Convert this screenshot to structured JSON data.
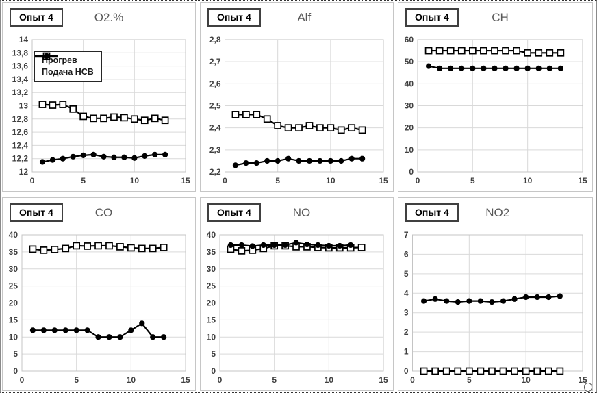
{
  "experiment_label": "Опыт 4",
  "legend": {
    "items": [
      {
        "label": "Прогрев",
        "marker": "open-square"
      },
      {
        "label": "Подача НСВ",
        "marker": "filled-circle"
      }
    ]
  },
  "colors": {
    "series": "#000000",
    "grid": "#d9d9d9",
    "plot_border": "#c4c4c4",
    "tick_text": "#404040",
    "title_text": "#595959",
    "panel_border": "#c6c6c6"
  },
  "chart_data": [
    {
      "type": "line",
      "title": "O2.%",
      "badge": "Опыт 4",
      "x": [
        1,
        2,
        3,
        4,
        5,
        6,
        7,
        8,
        9,
        10,
        11,
        12,
        13
      ],
      "series": [
        {
          "name": "Прогрев",
          "marker": "open-square",
          "values": [
            13.02,
            13.01,
            13.02,
            12.95,
            12.84,
            12.81,
            12.81,
            12.83,
            12.82,
            12.8,
            12.78,
            12.81,
            12.78
          ]
        },
        {
          "name": "Подача НСВ",
          "marker": "filled-circle",
          "values": [
            12.15,
            12.18,
            12.2,
            12.23,
            12.25,
            12.26,
            12.23,
            12.22,
            12.22,
            12.21,
            12.24,
            12.26,
            12.26
          ]
        }
      ],
      "xlim": [
        0,
        15
      ],
      "xticks": [
        0,
        5,
        10,
        15
      ],
      "ylim": [
        12,
        14
      ],
      "ystep": 0.2,
      "decimal_comma": true,
      "grid_on": true,
      "legend_visible": true,
      "legend_position": "upper-left"
    },
    {
      "type": "line",
      "title": "Alf",
      "badge": "Опыт 4",
      "x": [
        1,
        2,
        3,
        4,
        5,
        6,
        7,
        8,
        9,
        10,
        11,
        12,
        13
      ],
      "series": [
        {
          "name": "Прогрев",
          "marker": "open-square",
          "values": [
            2.46,
            2.46,
            2.46,
            2.44,
            2.41,
            2.4,
            2.4,
            2.41,
            2.4,
            2.4,
            2.39,
            2.4,
            2.39
          ]
        },
        {
          "name": "Подача НСВ",
          "marker": "filled-circle",
          "values": [
            2.23,
            2.24,
            2.24,
            2.25,
            2.25,
            2.26,
            2.25,
            2.25,
            2.25,
            2.25,
            2.25,
            2.26,
            2.26
          ]
        }
      ],
      "xlim": [
        0,
        15
      ],
      "xticks": [
        0,
        5,
        10,
        15
      ],
      "ylim": [
        2.2,
        2.8
      ],
      "ystep": 0.1,
      "decimal_comma": true,
      "grid_on": true,
      "legend_visible": false
    },
    {
      "type": "line",
      "title": "CH",
      "badge": "Опыт 4",
      "x": [
        1,
        2,
        3,
        4,
        5,
        6,
        7,
        8,
        9,
        10,
        11,
        12,
        13
      ],
      "series": [
        {
          "name": "Прогрев",
          "marker": "open-square",
          "values": [
            55,
            55,
            55,
            55,
            55,
            55,
            55,
            55,
            55,
            54,
            54,
            54,
            54
          ]
        },
        {
          "name": "Подача НСВ",
          "marker": "filled-circle",
          "values": [
            48,
            47,
            47,
            47,
            47,
            47,
            47,
            47,
            47,
            47,
            47,
            47,
            47
          ]
        }
      ],
      "xlim": [
        0,
        15
      ],
      "xticks": [
        0,
        5,
        10,
        15
      ],
      "ylim": [
        0,
        60
      ],
      "ystep": 10,
      "decimal_comma": true,
      "grid_on": true,
      "legend_visible": false
    },
    {
      "type": "line",
      "title": "CO",
      "badge": "Опыт 4",
      "x": [
        1,
        2,
        3,
        4,
        5,
        6,
        7,
        8,
        9,
        10,
        11,
        12,
        13
      ],
      "series": [
        {
          "name": "Прогрев",
          "marker": "open-square",
          "values": [
            35.8,
            35.5,
            35.7,
            36,
            36.8,
            36.7,
            36.8,
            36.8,
            36.5,
            36.2,
            36,
            36,
            36.3
          ]
        },
        {
          "name": "Подача НСВ",
          "marker": "filled-circle",
          "values": [
            12,
            12,
            12,
            12,
            12,
            12,
            10,
            10,
            10,
            12,
            14,
            10,
            10
          ]
        }
      ],
      "xlim": [
        0,
        15
      ],
      "xticks": [
        0,
        5,
        10,
        15
      ],
      "ylim": [
        0,
        40
      ],
      "ystep": 5,
      "decimal_comma": true,
      "grid_on": true,
      "legend_visible": false
    },
    {
      "type": "line",
      "title": "NO",
      "badge": "Опыт 4",
      "x": [
        1,
        2,
        3,
        4,
        5,
        6,
        7,
        8,
        9,
        10,
        11,
        12,
        13
      ],
      "series": [
        {
          "name": "Прогрев",
          "marker": "open-square",
          "values": [
            35.8,
            35.3,
            35.5,
            36,
            36.8,
            36.8,
            36.5,
            36.5,
            36.3,
            36.2,
            36.2,
            36.2,
            36.3
          ]
        },
        {
          "name": "Подача НСВ",
          "marker": "filled-circle",
          "values": [
            37,
            37,
            36.7,
            37,
            37,
            37,
            37.7,
            37.2,
            37,
            36.8,
            36.8,
            37,
            null
          ]
        }
      ],
      "xlim": [
        0,
        15
      ],
      "xticks": [
        0,
        5,
        10,
        15
      ],
      "ylim": [
        0,
        40
      ],
      "ystep": 5,
      "decimal_comma": true,
      "grid_on": true,
      "legend_visible": false
    },
    {
      "type": "line",
      "title": "NO2",
      "badge": "Опыт 4",
      "x": [
        1,
        2,
        3,
        4,
        5,
        6,
        7,
        8,
        9,
        10,
        11,
        12,
        13
      ],
      "series": [
        {
          "name": "Прогрев",
          "marker": "open-square",
          "values": [
            0,
            0,
            0,
            0,
            0,
            0,
            0,
            0,
            0,
            0,
            0,
            0,
            0
          ]
        },
        {
          "name": "Подача НСВ",
          "marker": "filled-circle",
          "values": [
            3.6,
            3.7,
            3.6,
            3.55,
            3.6,
            3.6,
            3.55,
            3.6,
            3.7,
            3.8,
            3.8,
            3.8,
            3.85
          ]
        }
      ],
      "xlim": [
        0,
        15
      ],
      "xticks": [
        0,
        5,
        10,
        15
      ],
      "ylim": [
        0,
        7
      ],
      "ystep": 1,
      "decimal_comma": true,
      "grid_on": true,
      "legend_visible": false
    }
  ]
}
